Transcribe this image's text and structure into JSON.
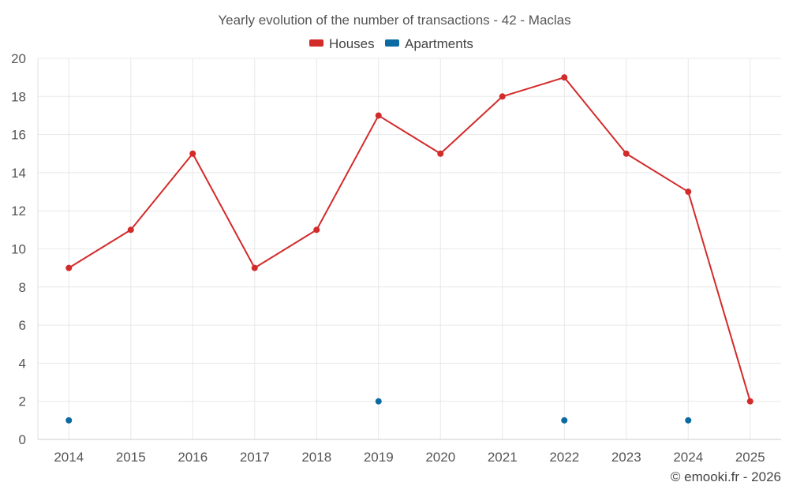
{
  "chart_data": {
    "type": "line",
    "title": "Yearly evolution of the number of transactions - 42 - Maclas",
    "categories": [
      "2014",
      "2015",
      "2016",
      "2017",
      "2018",
      "2019",
      "2020",
      "2021",
      "2022",
      "2023",
      "2024",
      "2025"
    ],
    "ylim": [
      0,
      20
    ],
    "yticks": [
      0,
      2,
      4,
      6,
      8,
      10,
      12,
      14,
      16,
      18,
      20
    ],
    "grid": true,
    "legend_position": "top-center",
    "series": [
      {
        "name": "Houses",
        "color": "#d32a2a",
        "values": [
          9,
          11,
          15,
          9,
          11,
          17,
          15,
          18,
          19,
          15,
          13,
          2
        ],
        "connected": true
      },
      {
        "name": "Apartments",
        "color": "#0a6aa1",
        "values": [
          1,
          null,
          null,
          null,
          null,
          2,
          null,
          null,
          1,
          null,
          1,
          null
        ],
        "connected": false
      }
    ]
  },
  "credit": "© emooki.fr - 2026"
}
